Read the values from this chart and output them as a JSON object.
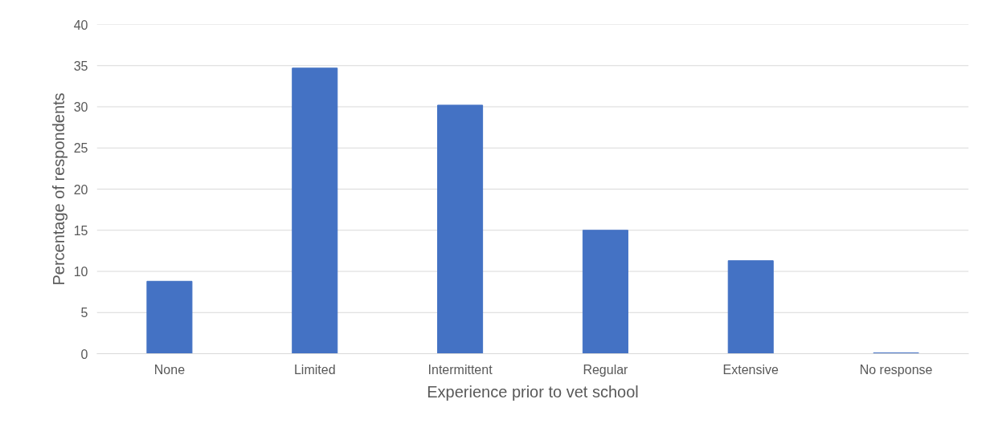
{
  "chart_data": {
    "type": "bar",
    "xlabel": "Experience prior to vet school",
    "ylabel": "Percentage of respondents",
    "categories": [
      "None",
      "Limited",
      "Intermittent",
      "Regular",
      "Extensive",
      "No response"
    ],
    "values": [
      8.8,
      34.7,
      30.2,
      15.0,
      11.3,
      0.1
    ],
    "color": "#4472c4",
    "ylim": [
      0,
      40
    ],
    "yticks": [
      0,
      5,
      10,
      15,
      20,
      25,
      30,
      35,
      40
    ],
    "grid": "y"
  }
}
